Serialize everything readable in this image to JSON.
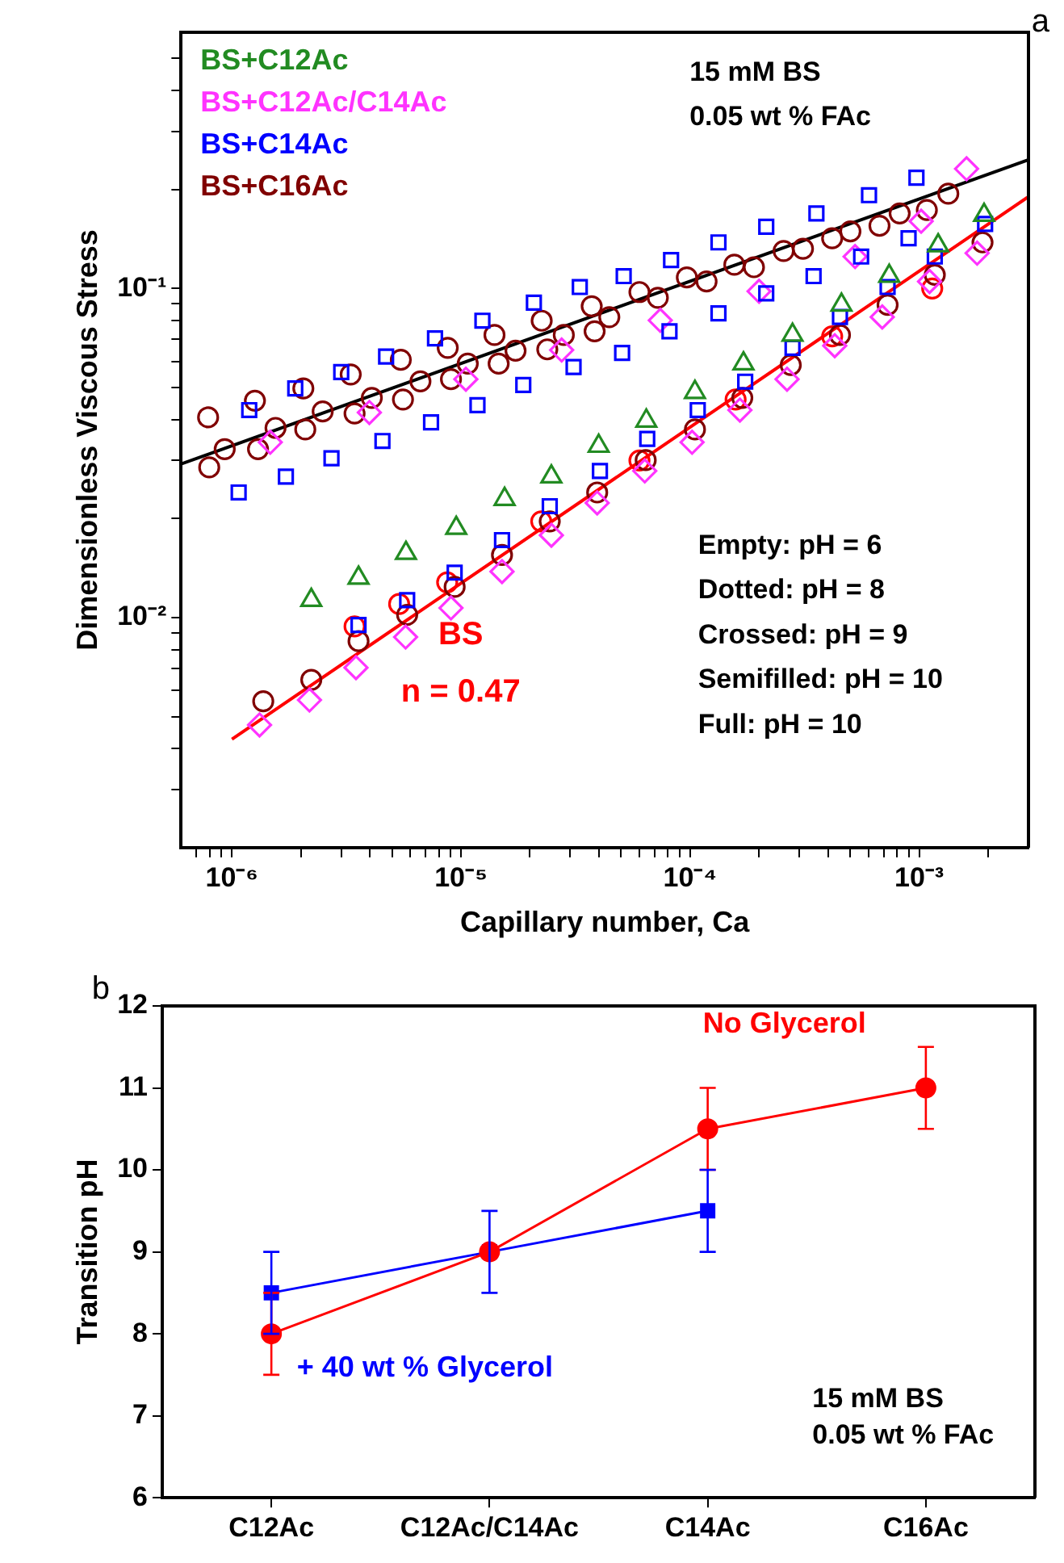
{
  "chart_data": [
    {
      "type": "scatter",
      "title": "a",
      "xlabel": "Capillary number, Ca",
      "ylabel": "Dimensionless Viscous Stress",
      "log": "xy",
      "grid": false,
      "legend": "top left",
      "xlim": [
        6e-07,
        0.003
      ],
      "ylim": [
        0.002,
        0.6
      ],
      "xticks": [
        {
          "value": 7e-07,
          "label": null
        },
        {
          "value": 8e-07,
          "label": null
        },
        {
          "value": 9e-07,
          "label": null
        },
        {
          "value": 1e-06,
          "label": "10⁻⁶"
        },
        {
          "value": 2e-06,
          "label": null
        },
        {
          "value": 3e-06,
          "label": null
        },
        {
          "value": 4e-06,
          "label": null
        },
        {
          "value": 5e-06,
          "label": null
        },
        {
          "value": 6e-06,
          "label": null
        },
        {
          "value": 7e-06,
          "label": null
        },
        {
          "value": 8e-06,
          "label": null
        },
        {
          "value": 9e-06,
          "label": null
        },
        {
          "value": 1e-05,
          "label": "10⁻⁵"
        },
        {
          "value": 2e-05,
          "label": null
        },
        {
          "value": 3e-05,
          "label": null
        },
        {
          "value": 4e-05,
          "label": null
        },
        {
          "value": 5e-05,
          "label": null
        },
        {
          "value": 6e-05,
          "label": null
        },
        {
          "value": 7e-05,
          "label": null
        },
        {
          "value": 8e-05,
          "label": null
        },
        {
          "value": 9e-05,
          "label": null
        },
        {
          "value": 0.0001,
          "label": "10⁻⁴"
        },
        {
          "value": 0.0002,
          "label": null
        },
        {
          "value": 0.0003,
          "label": null
        },
        {
          "value": 0.0004,
          "label": null
        },
        {
          "value": 0.0005,
          "label": null
        },
        {
          "value": 0.0006,
          "label": null
        },
        {
          "value": 0.0007,
          "label": null
        },
        {
          "value": 0.0008,
          "label": null
        },
        {
          "value": 0.0009,
          "label": null
        },
        {
          "value": 0.001,
          "label": "10⁻³"
        },
        {
          "value": 0.002,
          "label": null
        }
      ],
      "yticks": [
        {
          "value": 0.003,
          "label": null
        },
        {
          "value": 0.004,
          "label": null
        },
        {
          "value": 0.005,
          "label": null
        },
        {
          "value": 0.006,
          "label": null
        },
        {
          "value": 0.007,
          "label": null
        },
        {
          "value": 0.008,
          "label": null
        },
        {
          "value": 0.009,
          "label": null
        },
        {
          "value": 0.01,
          "label": "10⁻²"
        },
        {
          "value": 0.02,
          "label": null
        },
        {
          "value": 0.03,
          "label": null
        },
        {
          "value": 0.04,
          "label": null
        },
        {
          "value": 0.05,
          "label": null
        },
        {
          "value": 0.06,
          "label": null
        },
        {
          "value": 0.07,
          "label": null
        },
        {
          "value": 0.08,
          "label": null
        },
        {
          "value": 0.09,
          "label": null
        },
        {
          "value": 0.1,
          "label": "10⁻¹"
        },
        {
          "value": 0.2,
          "label": null
        },
        {
          "value": 0.3,
          "label": null
        },
        {
          "value": 0.4,
          "label": null
        },
        {
          "value": 0.5,
          "label": null
        }
      ],
      "annotations": [
        "15 mM BS",
        "0.05 wt % FAc",
        "Empty: pH = 6",
        "Dotted: pH = 8",
        "Crossed: pH = 9",
        "Semifilled: pH = 10",
        "Full: pH = 10",
        "BS",
        "n = 0.47"
      ],
      "series": [
        {
          "name": "BS+C12Ac",
          "color": "#228b22",
          "marker": "triangle",
          "x": [
            2.22e-06,
            3.57e-06,
            5.75e-06,
            9.53e-06,
            1.55e-05,
            2.48e-05,
            3.99e-05,
            6.44e-05,
            0.000105,
            0.000171,
            0.00028,
            0.000458,
            0.00074,
            0.00121,
            0.00192
          ],
          "values": [
            0.0113,
            0.0132,
            0.0157,
            0.0187,
            0.0229,
            0.0268,
            0.0332,
            0.0396,
            0.0484,
            0.0591,
            0.0722,
            0.0891,
            0.109,
            0.135,
            0.167
          ]
        },
        {
          "name": "BS+C12Ac/C14Ac",
          "color": "#ff33ff",
          "marker": "diamond",
          "x": [
            1.32e-06,
            2.18e-06,
            3.48e-06,
            5.73e-06,
            9.04e-06,
            1.51e-05,
            2.48e-05,
            3.93e-05,
            6.34e-05,
            0.000102,
            0.000165,
            0.000265,
            0.000428,
            0.00069,
            0.00111,
            0.00179
          ],
          "values": [
            0.00472,
            0.00562,
            0.00705,
            0.00873,
            0.0107,
            0.0138,
            0.0178,
            0.0223,
            0.0279,
            0.0341,
            0.0427,
            0.053,
            0.067,
            0.0819,
            0.105,
            0.128
          ]
        },
        {
          "name": "BS+C14Ac",
          "color": "#0000ff",
          "marker": "square",
          "x": [
            3.57e-06,
            5.82e-06,
            9.38e-06,
            1.51e-05,
            2.44e-05,
            4.04e-05,
            6.5e-05,
            0.000108,
            0.000174,
            0.00028,
            0.000451,
            0.000728,
            0.00117,
            0.00194
          ],
          "values": [
            0.0095,
            0.0113,
            0.0137,
            0.0172,
            0.0218,
            0.0279,
            0.0349,
            0.0427,
            0.0521,
            0.066,
            0.0819,
            0.101,
            0.125,
            0.157
          ]
        },
        {
          "name": "BS+C16Ac",
          "color": "#800000",
          "marker": "circle",
          "x": [
            1.37e-06,
            2.22e-06,
            3.57e-06,
            5.82e-06,
            9.38e-06,
            1.51e-05,
            2.44e-05,
            3.93e-05,
            6.4e-05,
            0.000105,
            0.000169,
            0.000275,
            0.000451,
            0.000728,
            0.00117,
            0.00189
          ],
          "values": [
            0.00557,
            0.00647,
            0.00848,
            0.0102,
            0.0124,
            0.0155,
            0.0196,
            0.024,
            0.0301,
            0.0373,
            0.0465,
            0.0585,
            0.0722,
            0.0891,
            0.11,
            0.138
          ]
        },
        {
          "color": "#0000ff",
          "marker": "square",
          "x": [
            1.19e-06,
            1.89e-06,
            3e-06,
            4.71e-06,
            7.7e-06,
            1.24e-05,
            2.08e-05,
            3.3e-05,
            5.13e-05,
            8.26e-05,
            0.000133,
            0.000215,
            0.000356,
            0.000604,
            0.000973
          ],
          "values": [
            0.0427,
            0.0497,
            0.0557,
            0.0621,
            0.0705,
            0.0798,
            0.0905,
            0.101,
            0.109,
            0.122,
            0.138,
            0.154,
            0.169,
            0.192,
            0.217
          ]
        },
        {
          "color": "#0000ff",
          "marker": "square",
          "x": [
            1.07e-06,
            1.72e-06,
            2.72e-06,
            4.54e-06,
            7.4e-06,
            1.18e-05,
            1.87e-05,
            3.1e-05,
            5.05e-05,
            8.13e-05,
            0.000133,
            0.000215,
            0.000346,
            0.000558,
            0.000899
          ],
          "values": [
            0.024,
            0.0268,
            0.0305,
            0.0344,
            0.0392,
            0.0442,
            0.0509,
            0.0577,
            0.0637,
            0.0741,
            0.084,
            0.0966,
            0.109,
            0.125,
            0.142
          ]
        },
        {
          "color": "#ff33ff",
          "marker": "diamond",
          "x": [
            1.47e-06,
            3.98e-06,
            1.05e-05,
            2.75e-05,
            7.41e-05,
            0.0002,
            0.000525,
            0.00102,
            0.00161
          ],
          "values": [
            0.0341,
            0.042,
            0.053,
            0.065,
            0.08,
            0.098,
            0.125,
            0.16,
            0.231
          ]
        },
        {
          "color": "#800000",
          "marker": "circle",
          "x": [
            7.87e-07,
            1.26e-06,
            2.05e-06,
            3.3e-06,
            5.46e-06,
            8.75e-06,
            1.4e-05,
            2.25e-05,
            3.72e-05,
            6.01e-05,
            9.68e-05,
            0.000156,
            0.000256,
            0.000417,
            0.000671,
            0.00108
          ],
          "values": [
            0.0406,
            0.0456,
            0.0497,
            0.0548,
            0.0607,
            0.066,
            0.0722,
            0.0798,
            0.0883,
            0.0975,
            0.108,
            0.118,
            0.13,
            0.142,
            0.155,
            0.173
          ]
        },
        {
          "color": "#800000",
          "marker": "circle",
          "x": [
            9.3e-07,
            1.55e-06,
            2.49e-06,
            4.08e-06,
            6.65e-06,
            1.07e-05,
            1.73e-05,
            2.81e-05,
            4.44e-05,
            7.23e-05,
            0.000118,
            0.00019,
            0.000311,
            0.000501,
            0.000822,
            0.00134
          ],
          "values": [
            0.0325,
            0.0377,
            0.0423,
            0.0465,
            0.0522,
            0.0591,
            0.0647,
            0.0722,
            0.0818,
            0.0937,
            0.105,
            0.116,
            0.132,
            0.149,
            0.169,
            0.194
          ]
        },
        {
          "color": "#800000",
          "marker": "circle",
          "x": [
            7.96e-07,
            1.3e-06,
            2.09e-06,
            3.43e-06,
            5.58e-06,
            9.04e-06,
            1.46e-05,
            2.38e-05,
            3.83e-05
          ],
          "values": [
            0.0286,
            0.0325,
            0.0373,
            0.0417,
            0.046,
            0.053,
            0.0591,
            0.0653,
            0.0741
          ]
        },
        {
          "color": "#ff0000",
          "marker": "circle",
          "x": [
            3.43e-06,
            5.37e-06,
            8.7e-06,
            2.24e-05,
            6.01e-05,
            0.000158,
            0.000417,
            0.00114
          ],
          "values": [
            0.0094,
            0.011,
            0.0128,
            0.0196,
            0.03,
            0.046,
            0.0715,
            0.1
          ]
        },
        {
          "type": "line",
          "color": "#000000",
          "marker": "none",
          "x": [
            6e-07,
            0.003
          ],
          "values": [
            0.0293,
            0.246
          ]
        },
        {
          "type": "line",
          "color": "#ff0000",
          "marker": "none",
          "x": [
            1e-06,
            0.003
          ],
          "values": [
            0.00427,
            0.19
          ]
        }
      ]
    },
    {
      "type": "line",
      "title": "b",
      "ylabel": "Transition pH",
      "grid": false,
      "legend": false,
      "categories": [
        "C12Ac",
        "C12Ac/C14Ac",
        "C14Ac",
        "C16Ac"
      ],
      "ylim": [
        6,
        12
      ],
      "yticks": [
        6,
        7,
        8,
        9,
        10,
        11,
        12
      ],
      "annotations": [
        "15 mM BS",
        "0.05 wt % FAc"
      ],
      "series": [
        {
          "name": "No Glycerol",
          "color": "#ff0000",
          "marker": "circle",
          "values": [
            8,
            9,
            10.5,
            11
          ],
          "errors": [
            0.5,
            null,
            0.5,
            0.5
          ]
        },
        {
          "name": "+ 40 wt % Glycerol",
          "color": "#0000ff",
          "marker": "square",
          "values": [
            8.5,
            9,
            9.5,
            null
          ],
          "errors": [
            0.5,
            0.5,
            0.5,
            null
          ]
        }
      ]
    }
  ]
}
